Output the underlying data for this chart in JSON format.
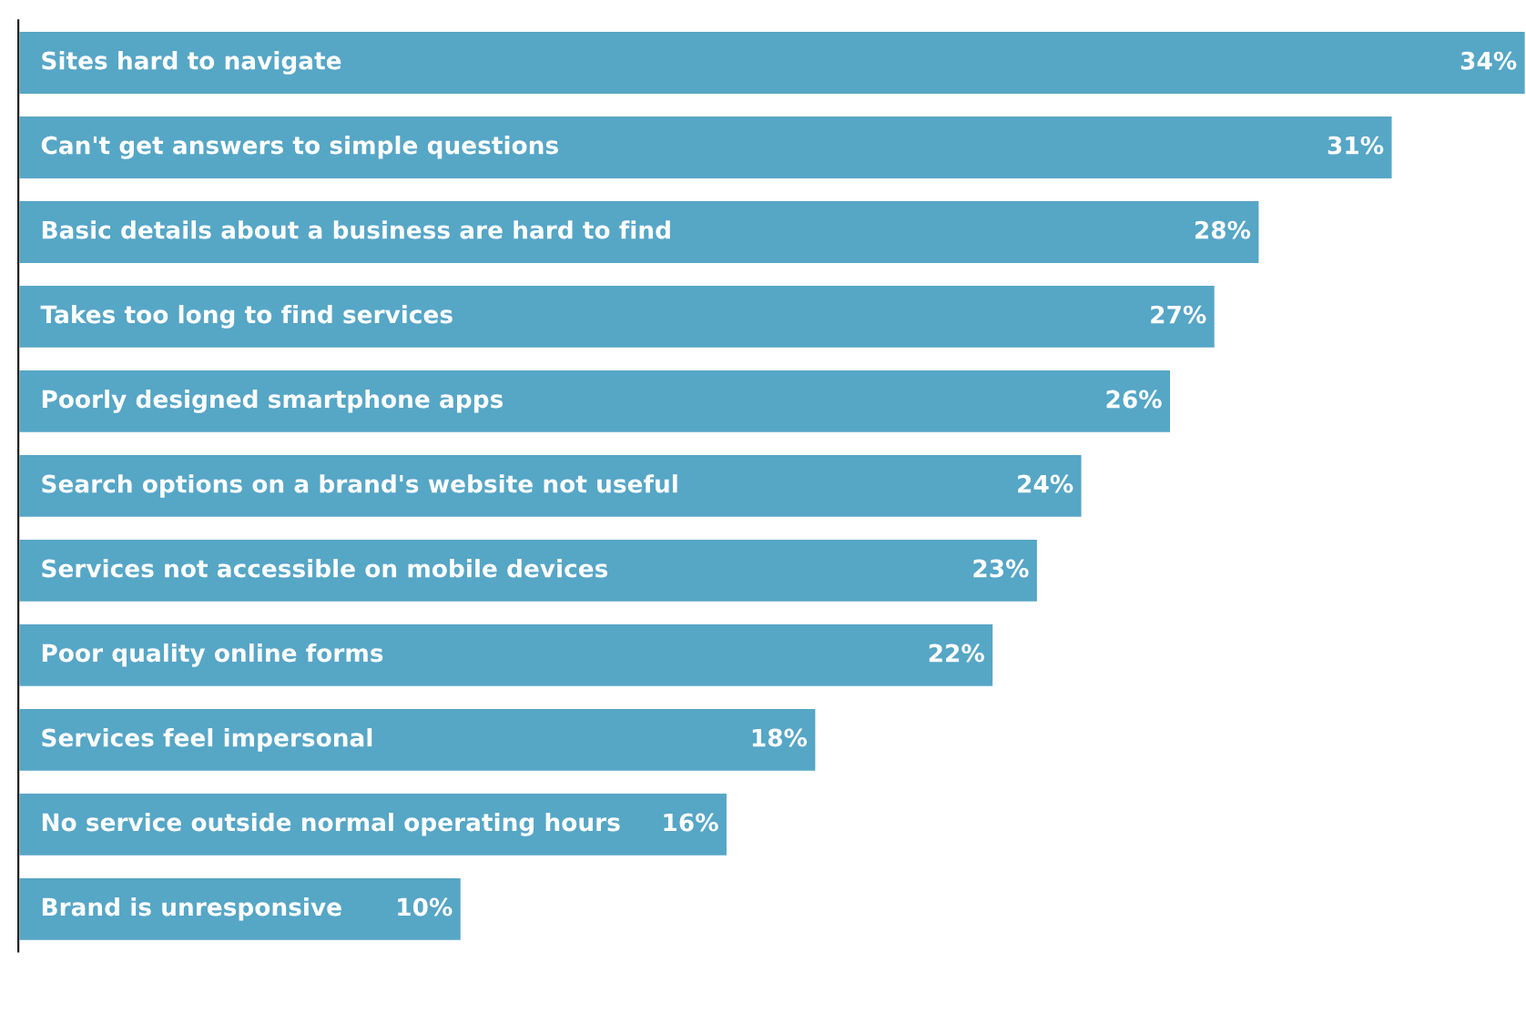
{
  "chart_data": {
    "type": "bar",
    "orientation": "horizontal",
    "color": "#56a6c6",
    "value_labels": [
      "34%",
      "31%",
      "28%",
      "27%",
      "26%",
      "24%",
      "23%",
      "22%",
      "18%",
      "16%",
      "10%"
    ],
    "categories": [
      "Sites hard to navigate",
      "Can't get answers to simple questions",
      "Basic details about a business are hard to find",
      "Takes too long to find services",
      "Poorly designed smartphone apps",
      "Search options on a brand's website not useful",
      "Services not accessible on mobile devices",
      "Poor quality online forms",
      "Services feel impersonal",
      "No service outside normal operating hours",
      "Brand is unresponsive"
    ],
    "values": [
      34,
      31,
      28,
      27,
      26,
      24,
      23,
      22,
      18,
      16,
      10
    ]
  }
}
